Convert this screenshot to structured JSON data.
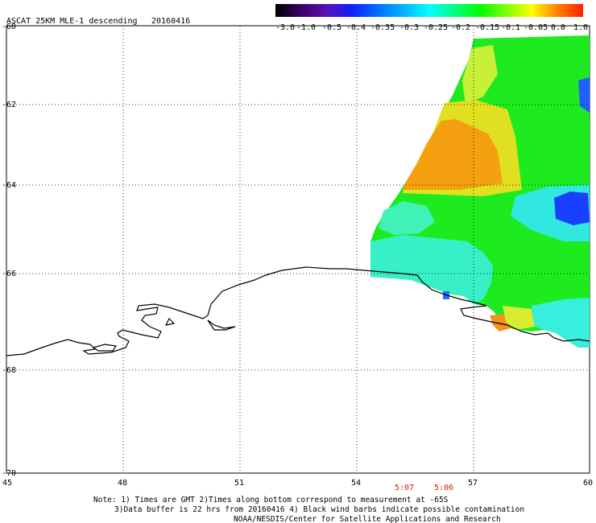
{
  "header": {
    "title": "ASCAT 25KM MLE-1 descending",
    "date": "20160416"
  },
  "colorbar": {
    "labels": [
      "-3.0",
      "-1.0",
      "-0.5",
      "-0.4",
      "-0.35",
      "-0.3",
      "-0.25",
      "-0.2",
      "-0.15",
      "-0.1",
      "-0.05",
      "0.0",
      "1.0"
    ],
    "colors": [
      "#000000",
      "#3a0066",
      "#5a10b4",
      "#1020ff",
      "#0070ff",
      "#00b4ff",
      "#00ffff",
      "#00ff80",
      "#00ff00",
      "#80ff00",
      "#ffff00",
      "#ff8000",
      "#ff2000"
    ]
  },
  "axes": {
    "lat_labels": [
      "-60",
      "-62",
      "-64",
      "-66",
      "-68",
      "-70"
    ],
    "lon_labels": [
      "45",
      "48",
      "51",
      "54",
      "57",
      "60"
    ]
  },
  "times": [
    "5:07",
    "5:06"
  ],
  "notes": {
    "line1": "Note: 1) Times are GMT 2)Times along bottom correspond to measurement at -65S",
    "line2": "3)Data buffer is 22 hrs from 20160416 4) Black wind barbs indicate possible contamination",
    "line3": "NOAA/NESDIS/Center for Satellite Applications and Research"
  }
}
